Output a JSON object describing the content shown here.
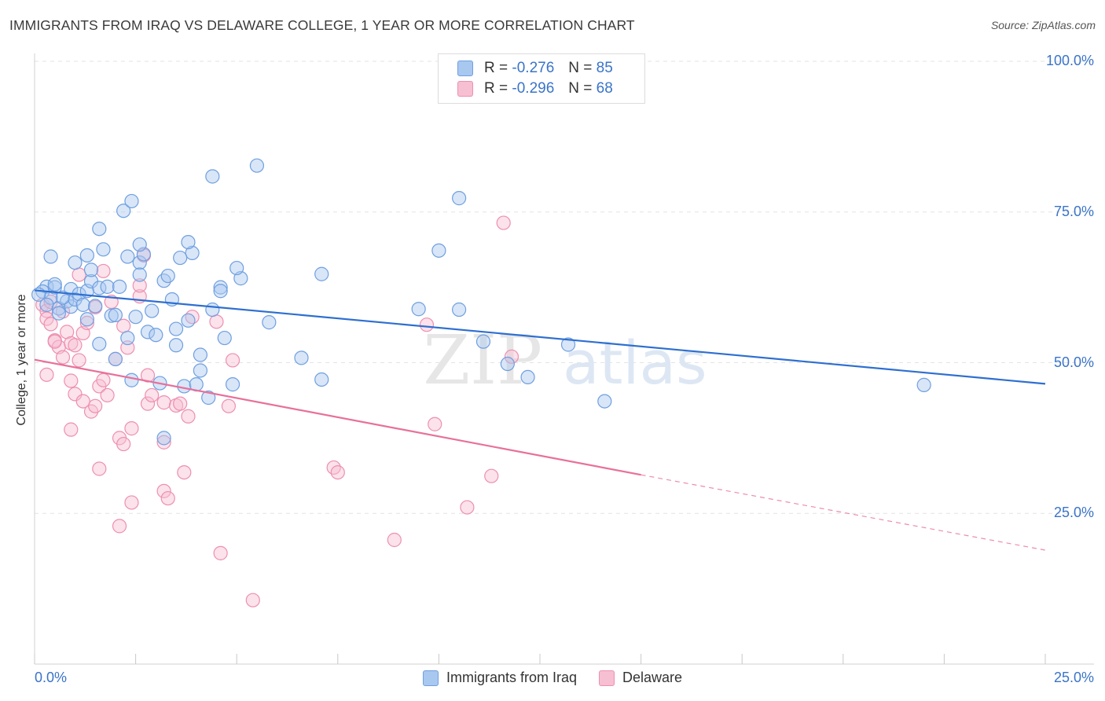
{
  "header": {
    "title": "IMMIGRANTS FROM IRAQ VS DELAWARE COLLEGE, 1 YEAR OR MORE CORRELATION CHART",
    "source": "Source: ZipAtlas.com"
  },
  "watermark": {
    "zip": "ZIP",
    "atlas": "atlas"
  },
  "legend": {
    "rows": [
      {
        "r_label": "R =",
        "r_value": "-0.276",
        "n_label": "N =",
        "n_value": "85",
        "color": "#a9c8f0",
        "border": "#6f9fe0"
      },
      {
        "r_label": "R =",
        "r_value": "-0.296",
        "n_label": "N =",
        "n_value": "68",
        "color": "#f7bfd2",
        "border": "#ee8fb0"
      }
    ]
  },
  "colors": {
    "iraq_fill": "#a9c8f0",
    "iraq_stroke": "#6f9fe0",
    "iraq_line": "#2e6fd0",
    "delaware_fill": "#f7bfd2",
    "delaware_stroke": "#ee8fb0",
    "delaware_line": "#e8709a",
    "axis_text": "#3a74c8",
    "grid": "#e3e3e3"
  },
  "chart_data": {
    "type": "scatter",
    "title": "IMMIGRANTS FROM IRAQ VS DELAWARE COLLEGE, 1 YEAR OR MORE CORRELATION CHART",
    "xlabel": "",
    "ylabel": "College, 1 year or more",
    "xlim": [
      0,
      25
    ],
    "ylim": [
      0,
      100
    ],
    "x_tick_labels": [
      "0.0%",
      "25.0%"
    ],
    "y_ticks": [
      25,
      50,
      75,
      100
    ],
    "y_tick_labels": [
      "25.0%",
      "50.0%",
      "75.0%",
      "100.0%"
    ],
    "grid": true,
    "legend_position": "bottom-center",
    "series": [
      {
        "name": "Immigrants from Iraq",
        "r": -0.276,
        "n": 85,
        "trend": {
          "x0": 0,
          "y0": 62.0,
          "x1": 25,
          "y1": 46.5
        },
        "points": [
          [
            0.3,
            62.6
          ],
          [
            0.2,
            61.8
          ],
          [
            0.4,
            60.8
          ],
          [
            0.1,
            61.3
          ],
          [
            0.5,
            62.5
          ],
          [
            0.3,
            59.6
          ],
          [
            0.6,
            59.0
          ],
          [
            0.8,
            60.2
          ],
          [
            0.9,
            59.3
          ],
          [
            0.7,
            60.8
          ],
          [
            0.4,
            67.6
          ],
          [
            0.5,
            63.0
          ],
          [
            0.9,
            62.2
          ],
          [
            1.0,
            60.5
          ],
          [
            1.1,
            61.4
          ],
          [
            1.2,
            59.6
          ],
          [
            1.3,
            61.9
          ],
          [
            1.4,
            63.5
          ],
          [
            1.5,
            59.4
          ],
          [
            1.6,
            62.4
          ],
          [
            1.0,
            66.6
          ],
          [
            1.3,
            67.8
          ],
          [
            1.4,
            65.4
          ],
          [
            1.8,
            62.6
          ],
          [
            1.9,
            57.8
          ],
          [
            2.0,
            57.9
          ],
          [
            2.1,
            62.6
          ],
          [
            2.3,
            54.1
          ],
          [
            2.4,
            47.1
          ],
          [
            2.5,
            57.6
          ],
          [
            1.6,
            72.2
          ],
          [
            1.7,
            68.8
          ],
          [
            2.3,
            67.6
          ],
          [
            2.6,
            66.6
          ],
          [
            2.6,
            64.6
          ],
          [
            2.7,
            68.0
          ],
          [
            2.8,
            55.1
          ],
          [
            2.9,
            58.6
          ],
          [
            3.0,
            54.6
          ],
          [
            3.1,
            46.6
          ],
          [
            2.2,
            75.2
          ],
          [
            2.4,
            76.8
          ],
          [
            3.2,
            63.6
          ],
          [
            3.3,
            64.4
          ],
          [
            3.4,
            60.5
          ],
          [
            3.5,
            55.6
          ],
          [
            3.5,
            52.9
          ],
          [
            3.7,
            46.1
          ],
          [
            3.8,
            57.0
          ],
          [
            3.9,
            68.2
          ],
          [
            3.6,
            67.4
          ],
          [
            3.8,
            70.0
          ],
          [
            4.0,
            46.4
          ],
          [
            4.1,
            51.3
          ],
          [
            4.1,
            48.7
          ],
          [
            4.3,
            44.2
          ],
          [
            4.4,
            58.8
          ],
          [
            4.6,
            62.5
          ],
          [
            4.6,
            61.9
          ],
          [
            4.7,
            54.1
          ],
          [
            4.4,
            80.9
          ],
          [
            4.9,
            46.4
          ],
          [
            5.1,
            64.0
          ],
          [
            5.5,
            82.7
          ],
          [
            5.8,
            56.7
          ],
          [
            5.0,
            65.7
          ],
          [
            1.6,
            53.1
          ],
          [
            1.3,
            57.2
          ],
          [
            3.2,
            37.5
          ],
          [
            2.0,
            50.6
          ],
          [
            6.6,
            50.8
          ],
          [
            7.1,
            47.2
          ],
          [
            7.1,
            64.7
          ],
          [
            9.5,
            58.9
          ],
          [
            10.0,
            68.6
          ],
          [
            10.5,
            77.3
          ],
          [
            10.5,
            58.8
          ],
          [
            11.1,
            53.5
          ],
          [
            11.7,
            49.8
          ],
          [
            12.2,
            47.6
          ],
          [
            13.2,
            53.0
          ],
          [
            14.1,
            43.6
          ],
          [
            22.0,
            46.3
          ],
          [
            0.6,
            58.2
          ],
          [
            2.6,
            69.6
          ]
        ]
      },
      {
        "name": "Delaware",
        "r": -0.296,
        "n": 68,
        "trend": {
          "x0": 0,
          "y0": 50.5,
          "x1": 15.0,
          "y1": 31.4,
          "dashed_to_x": 25,
          "dashed_to_y": 18.9
        },
        "points": [
          [
            0.2,
            59.6
          ],
          [
            0.3,
            58.6
          ],
          [
            0.3,
            57.3
          ],
          [
            0.4,
            56.4
          ],
          [
            0.5,
            53.7
          ],
          [
            0.6,
            52.6
          ],
          [
            0.7,
            50.9
          ],
          [
            0.8,
            55.1
          ],
          [
            0.9,
            53.2
          ],
          [
            1.0,
            52.9
          ],
          [
            0.3,
            48.0
          ],
          [
            0.9,
            47.0
          ],
          [
            1.0,
            44.8
          ],
          [
            1.1,
            50.4
          ],
          [
            1.2,
            54.9
          ],
          [
            1.3,
            56.6
          ],
          [
            1.2,
            43.6
          ],
          [
            1.4,
            41.9
          ],
          [
            1.5,
            42.8
          ],
          [
            1.6,
            46.1
          ],
          [
            0.9,
            38.9
          ],
          [
            1.7,
            47.1
          ],
          [
            1.8,
            44.6
          ],
          [
            1.9,
            60.1
          ],
          [
            2.0,
            50.6
          ],
          [
            2.1,
            37.5
          ],
          [
            2.2,
            36.5
          ],
          [
            2.3,
            52.5
          ],
          [
            2.2,
            56.1
          ],
          [
            2.4,
            39.1
          ],
          [
            1.1,
            64.6
          ],
          [
            1.7,
            65.2
          ],
          [
            2.6,
            61.0
          ],
          [
            2.6,
            62.8
          ],
          [
            2.7,
            67.8
          ],
          [
            2.8,
            43.2
          ],
          [
            2.8,
            47.9
          ],
          [
            2.9,
            44.6
          ],
          [
            3.2,
            36.8
          ],
          [
            3.2,
            43.4
          ],
          [
            1.6,
            32.4
          ],
          [
            2.4,
            26.8
          ],
          [
            2.1,
            22.9
          ],
          [
            3.2,
            28.7
          ],
          [
            3.3,
            27.5
          ],
          [
            3.5,
            42.9
          ],
          [
            3.6,
            43.2
          ],
          [
            3.7,
            31.8
          ],
          [
            3.8,
            41.1
          ],
          [
            3.9,
            57.6
          ],
          [
            4.5,
            56.8
          ],
          [
            4.8,
            42.8
          ],
          [
            4.9,
            50.4
          ],
          [
            4.6,
            18.4
          ],
          [
            5.4,
            10.6
          ],
          [
            7.4,
            32.6
          ],
          [
            7.5,
            31.8
          ],
          [
            8.9,
            20.6
          ],
          [
            9.7,
            56.3
          ],
          [
            9.9,
            39.8
          ],
          [
            10.7,
            26.0
          ],
          [
            11.3,
            31.2
          ],
          [
            11.6,
            73.2
          ],
          [
            11.8,
            51.0
          ],
          [
            0.4,
            60.1
          ],
          [
            0.5,
            53.5
          ],
          [
            0.7,
            58.5
          ],
          [
            1.5,
            59.2
          ]
        ]
      }
    ]
  },
  "bottom_legend": [
    {
      "label": "Immigrants from Iraq"
    },
    {
      "label": "Delaware"
    }
  ]
}
